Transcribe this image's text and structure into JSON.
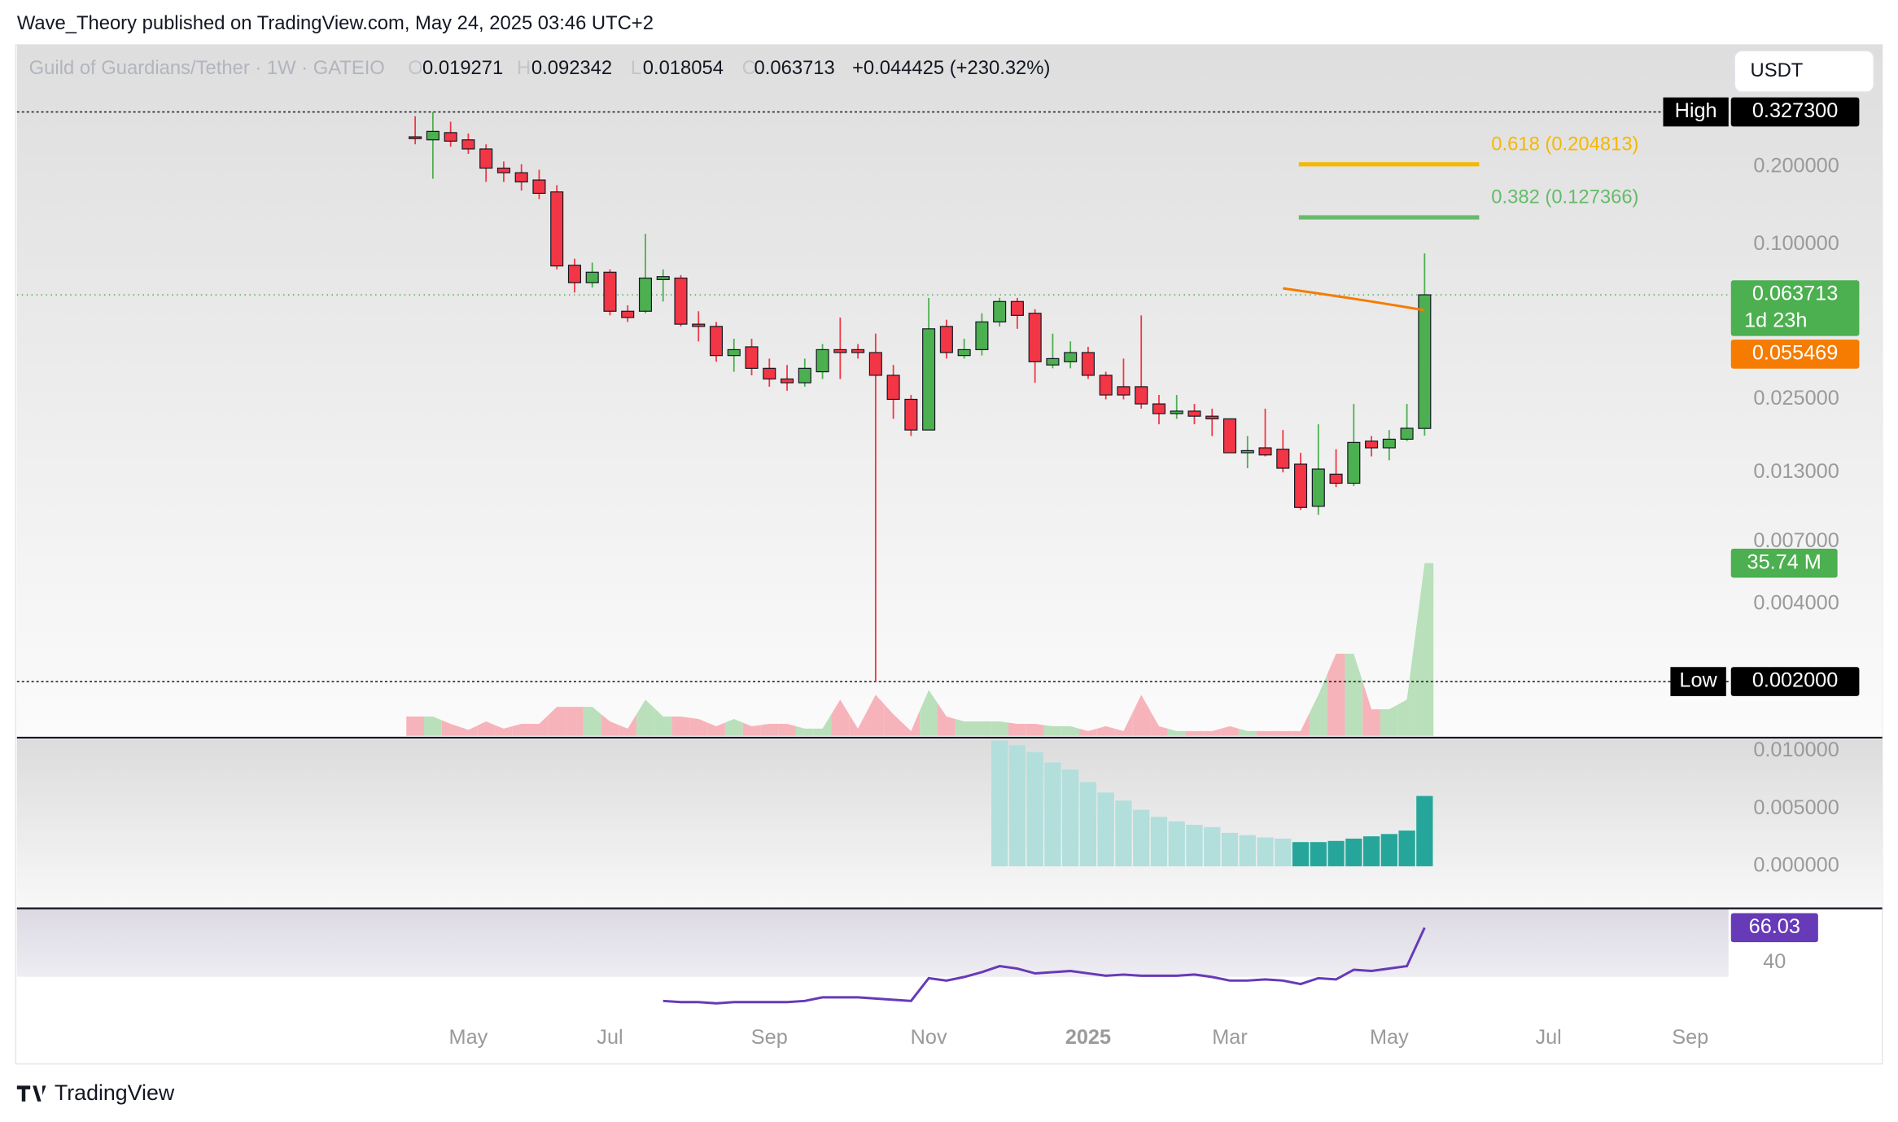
{
  "header": {
    "attribution": "Wave_Theory published on TradingView.com, May 24, 2025 03:46 UTC+2",
    "currency": "USDT",
    "brand": "TradingView"
  },
  "chart_data": [
    {
      "type": "candlestick",
      "title": "Guild of Guardians/Tether · 1W · GATEIO",
      "ohlc_letters": [
        "O",
        "H",
        "L",
        "C"
      ],
      "change_text": "+0.044425 (+230.32%)",
      "categories": [
        null,
        null,
        null,
        "May",
        null,
        null,
        null,
        null,
        null,
        null,
        null,
        "Jul",
        null,
        null,
        null,
        null,
        null,
        null,
        null,
        null,
        "Sep",
        null,
        null,
        null,
        null,
        null,
        null,
        null,
        null,
        "Nov",
        null,
        null,
        null,
        null,
        null,
        null,
        null,
        null,
        "2025",
        null,
        null,
        null,
        null,
        null,
        null,
        null,
        "Mar",
        null,
        null,
        null,
        null,
        null,
        null,
        null,
        null,
        "May",
        null,
        null,
        null,
        null,
        null,
        null,
        null,
        null,
        "Jul",
        null,
        null,
        null,
        null,
        null,
        null,
        null,
        "Sep"
      ],
      "open": [
        0.262,
        0.255,
        0.272,
        0.255,
        0.235,
        0.198,
        0.19,
        0.178,
        0.16,
        0.083,
        0.071,
        0.078,
        0.055,
        0.055,
        0.073,
        0.074,
        0.049,
        0.048,
        0.037,
        0.04,
        0.033,
        0.03,
        0.029,
        0.032,
        0.039,
        0.039,
        0.038,
        0.031,
        0.025,
        0.019,
        0.048,
        0.037,
        0.039,
        0.05,
        0.06,
        0.054,
        0.034,
        0.035,
        0.038,
        0.031,
        0.028,
        0.028,
        0.024,
        0.022,
        0.0225,
        0.0215,
        0.021,
        0.0155,
        0.0162,
        0.016,
        0.014,
        0.0096,
        0.0128,
        0.0118,
        0.0172,
        0.0162,
        0.0175,
        0.019271,
        null,
        null,
        null,
        null,
        null,
        null,
        null,
        null,
        null,
        null,
        null,
        null,
        null,
        null,
        null
      ],
      "high": [
        0.315,
        0.3273,
        0.3,
        0.27,
        0.245,
        0.21,
        0.205,
        0.195,
        0.17,
        0.088,
        0.085,
        0.08,
        0.058,
        0.11,
        0.08,
        0.076,
        0.055,
        0.05,
        0.043,
        0.043,
        0.036,
        0.034,
        0.036,
        0.041,
        0.052,
        0.041,
        0.045,
        0.034,
        0.026,
        0.062,
        0.051,
        0.043,
        0.054,
        0.062,
        0.062,
        0.056,
        0.045,
        0.042,
        0.04,
        0.032,
        0.036,
        0.053,
        0.026,
        0.026,
        0.024,
        0.023,
        0.021,
        0.018,
        0.023,
        0.019,
        0.0155,
        0.02,
        0.016,
        0.024,
        0.018,
        0.019,
        0.024,
        0.092342,
        null,
        null,
        null,
        null,
        null,
        null,
        null,
        null,
        null,
        null,
        null,
        null,
        null,
        null,
        null
      ],
      "low": [
        0.245,
        0.18,
        0.24,
        0.225,
        0.175,
        0.175,
        0.162,
        0.15,
        0.08,
        0.065,
        0.068,
        0.053,
        0.05,
        0.054,
        0.06,
        0.048,
        0.042,
        0.035,
        0.032,
        0.031,
        0.028,
        0.027,
        0.028,
        0.03,
        0.03,
        0.036,
        0.002,
        0.021,
        0.018,
        0.019,
        0.036,
        0.036,
        0.037,
        0.048,
        0.047,
        0.029,
        0.033,
        0.033,
        0.03,
        0.025,
        0.025,
        0.023,
        0.02,
        0.021,
        0.02,
        0.018,
        0.0155,
        0.0135,
        0.015,
        0.013,
        0.0093,
        0.0089,
        0.0114,
        0.0115,
        0.015,
        0.0145,
        0.0172,
        0.018054,
        null,
        null,
        null,
        null,
        null,
        null,
        null,
        null,
        null,
        null,
        null,
        null,
        null,
        null,
        null
      ],
      "close": [
        0.258,
        0.275,
        0.252,
        0.235,
        0.198,
        0.19,
        0.175,
        0.158,
        0.0825,
        0.071,
        0.078,
        0.055,
        0.052,
        0.074,
        0.075,
        0.049,
        0.048,
        0.037,
        0.039,
        0.033,
        0.03,
        0.029,
        0.033,
        0.039,
        0.038,
        0.038,
        0.031,
        0.025,
        0.019,
        0.047,
        0.038,
        0.039,
        0.05,
        0.06,
        0.053,
        0.035,
        0.036,
        0.038,
        0.031,
        0.026,
        0.026,
        0.024,
        0.022,
        0.0225,
        0.0215,
        0.021,
        0.0155,
        0.0158,
        0.0152,
        0.0135,
        0.0095,
        0.0134,
        0.0118,
        0.017,
        0.0162,
        0.0175,
        0.0193,
        0.063713,
        null,
        null,
        null,
        null,
        null,
        null,
        null,
        null,
        null,
        null,
        null,
        null,
        null,
        null,
        null
      ],
      "up_color": "#4caf50",
      "down_color": "#f23645",
      "log_scale": true,
      "ylim": [
        0.00123,
        0.597
      ],
      "yticks": [
        {
          "value": 0.2,
          "label": "0.200000"
        },
        {
          "value": 0.1,
          "label": "0.100000"
        },
        {
          "value": 0.025,
          "label": "0.025000"
        },
        {
          "value": 0.013,
          "label": "0.013000"
        },
        {
          "value": 0.007,
          "label": "0.007000"
        },
        {
          "value": 0.004,
          "label": "0.004000"
        }
      ],
      "high_marker": {
        "text": "High",
        "value": 0.3273,
        "label": "0.327300"
      },
      "low_marker": {
        "text": "Low",
        "value": 0.002,
        "label": "0.002000"
      },
      "last_price": {
        "countdown": "1d 23h",
        "color": "#4caf50"
      },
      "ma": {
        "color": "#f57c00",
        "values": [
          null,
          null,
          null,
          null,
          null,
          null,
          null,
          null,
          null,
          null,
          null,
          null,
          null,
          null,
          null,
          null,
          null,
          null,
          null,
          null,
          null,
          null,
          null,
          null,
          null,
          null,
          null,
          null,
          null,
          null,
          null,
          null,
          null,
          null,
          null,
          null,
          null,
          null,
          null,
          null,
          null,
          null,
          null,
          null,
          null,
          null,
          null,
          null,
          null,
          0.0675,
          0.066,
          0.0645,
          0.063,
          0.0615,
          0.06,
          0.0585,
          0.057,
          0.055469,
          null,
          null,
          null,
          null,
          null,
          null,
          null,
          null,
          null,
          null,
          null,
          null,
          null,
          null,
          null
        ]
      },
      "fib": [
        {
          "value": 0.204813,
          "label": "0.618 (0.204813)",
          "color": "#f5b800"
        },
        {
          "value": 0.127366,
          "label": "0.382 (0.127366)",
          "color": "#66bb6a"
        }
      ],
      "volume": {
        "up_color": "#b9e0bb",
        "down_color": "#f7b3ba",
        "badge_color": "#4caf50",
        "ylim": [
          0,
          143
        ],
        "last_label": "35.74 M",
        "values": [
          4,
          4,
          2.5,
          1.25,
          3,
          1.5,
          2.5,
          2.5,
          6,
          6,
          6,
          3,
          1.5,
          7.5,
          4,
          4,
          3.5,
          2,
          3.5,
          2,
          2.5,
          2.5,
          1.5,
          1.5,
          7.5,
          1.5,
          8.5,
          4.5,
          1,
          9.5,
          4,
          3,
          3,
          3,
          2.5,
          2.5,
          2,
          2,
          1,
          2,
          1,
          8.5,
          2,
          1,
          1,
          1,
          2,
          1,
          1,
          1,
          1,
          8.5,
          17,
          17,
          5.5,
          5.5,
          7.5,
          35.74,
          null,
          null,
          null,
          null,
          null,
          null,
          null,
          null,
          null,
          null,
          null,
          null,
          null,
          null,
          null
        ]
      }
    },
    {
      "type": "bar",
      "ylim": [
        -0.0036,
        0.011
      ],
      "yticks": [
        {
          "value": 0.01,
          "label": "0.010000"
        },
        {
          "value": 0.005,
          "label": "0.005000"
        },
        {
          "value": 0,
          "label": "0.000000"
        }
      ],
      "values": [
        null,
        null,
        null,
        null,
        null,
        null,
        null,
        null,
        null,
        null,
        null,
        null,
        null,
        null,
        null,
        null,
        null,
        null,
        null,
        null,
        null,
        null,
        null,
        null,
        null,
        null,
        null,
        null,
        null,
        null,
        null,
        null,
        null,
        0.0109,
        0.0105,
        0.0099,
        0.009,
        0.0084,
        0.0073,
        0.0064,
        0.0057,
        0.0049,
        0.0043,
        0.0039,
        0.0036,
        0.0034,
        0.0029,
        0.0027,
        0.0025,
        0.0024,
        0.0021,
        0.0021,
        0.0022,
        0.0024,
        0.0026,
        0.0028,
        0.0031,
        0.0061,
        null,
        null,
        null,
        null,
        null,
        null,
        null,
        null,
        null,
        null,
        null,
        null,
        null,
        null,
        null
      ],
      "colors": [
        null,
        null,
        null,
        null,
        null,
        null,
        null,
        null,
        null,
        null,
        null,
        null,
        null,
        null,
        null,
        null,
        null,
        null,
        null,
        null,
        null,
        null,
        null,
        null,
        null,
        null,
        null,
        null,
        null,
        null,
        null,
        null,
        null,
        "#b2dfdb",
        "#b2dfdb",
        "#b2dfdb",
        "#b2dfdb",
        "#b2dfdb",
        "#b2dfdb",
        "#b2dfdb",
        "#b2dfdb",
        "#b2dfdb",
        "#b2dfdb",
        "#b2dfdb",
        "#b2dfdb",
        "#b2dfdb",
        "#b2dfdb",
        "#b2dfdb",
        "#b2dfdb",
        "#b2dfdb",
        "#26a69a",
        "#26a69a",
        "#26a69a",
        "#26a69a",
        "#26a69a",
        "#26a69a",
        "#26a69a",
        "#26a69a",
        null,
        null,
        null,
        null,
        null,
        null,
        null,
        null,
        null,
        null,
        null,
        null,
        null,
        null,
        null
      ]
    },
    {
      "type": "line",
      "color": "#673ab7",
      "ylim": [
        -5,
        80
      ],
      "yticks": [
        40
      ],
      "values": [
        null,
        null,
        null,
        null,
        null,
        null,
        null,
        null,
        null,
        null,
        null,
        null,
        null,
        null,
        11.3,
        10.4,
        10.4,
        9.5,
        10.4,
        10.4,
        10.4,
        10.4,
        11.3,
        14.0,
        14.0,
        14.0,
        13.1,
        12.2,
        11.3,
        28.3,
        26.5,
        29.2,
        32.8,
        37.3,
        35.5,
        31.9,
        32.8,
        33.7,
        31.9,
        30.1,
        31.0,
        30.1,
        30.1,
        30.1,
        31.0,
        29.2,
        26.5,
        26.5,
        27.4,
        26.5,
        23.9,
        28.3,
        27.4,
        34.6,
        33.7,
        35.5,
        37.3,
        66.03,
        null,
        null,
        null,
        null,
        null,
        null,
        null,
        null,
        null,
        null,
        null,
        null,
        null,
        null,
        null
      ]
    }
  ]
}
